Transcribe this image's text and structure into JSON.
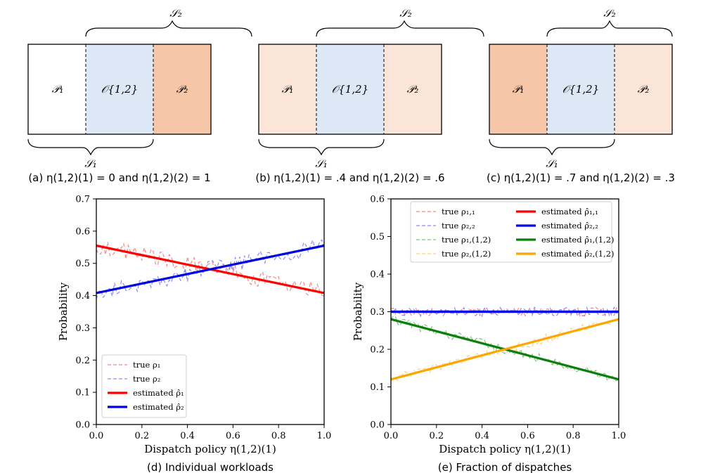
{
  "colors": {
    "p_dark": "#f5c6a8",
    "p_light": "#fbe5d8",
    "overlap": "#dce8f5",
    "true_rho1": "#f28b8b",
    "true_rho2": "#8c8cf0",
    "est_red": "#ff0000",
    "est_blue": "#0000e6",
    "true_green": "#7dc47d",
    "true_orange": "#ffd27a",
    "est_green": "#0a7f0a",
    "est_orange": "#ffa500"
  },
  "diagrams": [
    {
      "s2": "𝒮₂",
      "s1": "𝒮₁",
      "p1": "𝒫₁",
      "o12": "𝒪{1,2}",
      "p2": "𝒫₂",
      "p1_shade": "none",
      "p2_shade": "dark",
      "caption": "(a) η(1,2)(1) = 0 and η(1,2)(2) = 1"
    },
    {
      "s2": "𝒮₂",
      "s1": "𝒮₁",
      "p1": "𝒫₁",
      "o12": "𝒪{1,2}",
      "p2": "𝒫₂",
      "p1_shade": "light",
      "p2_shade": "light",
      "caption": "(b) η(1,2)(1) = .4 and η(1,2)(2) = .6"
    },
    {
      "s2": "𝒮₂",
      "s1": "𝒮₁",
      "p1": "𝒫₁",
      "o12": "𝒪{1,2}",
      "p2": "𝒫₂",
      "p1_shade": "dark",
      "p2_shade": "light",
      "caption": "(c) η(1,2)(1) = .7 and η(1,2)(2) = .3"
    }
  ],
  "chart_data": [
    {
      "type": "line",
      "caption": "(d) Individual workloads",
      "xlabel": "Dispatch policy η(1,2)(1)",
      "ylabel": "Probability",
      "xlim": [
        0.0,
        1.0
      ],
      "ylim": [
        0.0,
        0.7
      ],
      "xticks": [
        "0.0",
        "0.2",
        "0.4",
        "0.6",
        "0.8",
        "1.0"
      ],
      "yticks": [
        "0.0",
        "0.1",
        "0.2",
        "0.3",
        "0.4",
        "0.5",
        "0.6",
        "0.7"
      ],
      "legend_position": "bottom-left",
      "series": [
        {
          "name": "true ρ₁",
          "style": "dashed",
          "color": "#f28b8b",
          "kind": "noisy",
          "start": 0.555,
          "end": 0.41,
          "noise": 0.025
        },
        {
          "name": "true ρ₂",
          "style": "dashed",
          "color": "#8c8cf0",
          "kind": "noisy",
          "start": 0.41,
          "end": 0.555,
          "noise": 0.025
        },
        {
          "name": "estimated ρ̂₁",
          "style": "solid",
          "color": "#ff0000",
          "x": [
            0.0,
            1.0
          ],
          "y": [
            0.555,
            0.408
          ]
        },
        {
          "name": "estimated ρ̂₂",
          "style": "solid",
          "color": "#0000e6",
          "x": [
            0.0,
            1.0
          ],
          "y": [
            0.408,
            0.555
          ]
        }
      ]
    },
    {
      "type": "line",
      "caption": "(e) Fraction of dispatches",
      "xlabel": "Dispatch policy η(1,2)(1)",
      "ylabel": "Probability",
      "xlim": [
        0.0,
        1.0
      ],
      "ylim": [
        0.0,
        0.6
      ],
      "xticks": [
        "0.0",
        "0.2",
        "0.4",
        "0.6",
        "0.8",
        "1.0"
      ],
      "yticks": [
        "0.0",
        "0.1",
        "0.2",
        "0.3",
        "0.4",
        "0.5",
        "0.6"
      ],
      "legend_position": "top",
      "series": [
        {
          "name": "true ρ₁,₁",
          "style": "dashed",
          "color": "#f28b8b",
          "kind": "noisy",
          "start": 0.3,
          "end": 0.3,
          "noise": 0.012
        },
        {
          "name": "true ρ₂,₂",
          "style": "dashed",
          "color": "#8c8cf0",
          "kind": "noisy",
          "start": 0.3,
          "end": 0.3,
          "noise": 0.012
        },
        {
          "name": "true ρ₁,(1,2)",
          "style": "dashed",
          "color": "#7dc47d",
          "kind": "noisy",
          "start": 0.28,
          "end": 0.12,
          "noise": 0.012
        },
        {
          "name": "true ρ₂,(1,2)",
          "style": "dashed",
          "color": "#ffd27a",
          "kind": "noisy",
          "start": 0.12,
          "end": 0.28,
          "noise": 0.012
        },
        {
          "name": "estimated ρ̂₁,₁",
          "style": "solid",
          "color": "#ff0000",
          "x": [
            0.0,
            1.0
          ],
          "y": [
            0.3,
            0.3
          ]
        },
        {
          "name": "estimated ρ̂₂,₂",
          "style": "solid",
          "color": "#0000e6",
          "x": [
            0.0,
            1.0
          ],
          "y": [
            0.3,
            0.3
          ]
        },
        {
          "name": "estimated ρ̂₁,(1,2)",
          "style": "solid",
          "color": "#0a7f0a",
          "x": [
            0.0,
            1.0
          ],
          "y": [
            0.28,
            0.12
          ]
        },
        {
          "name": "estimated ρ̂₂,(1,2)",
          "style": "solid",
          "color": "#ffa500",
          "x": [
            0.0,
            1.0
          ],
          "y": [
            0.12,
            0.28
          ]
        }
      ]
    }
  ]
}
